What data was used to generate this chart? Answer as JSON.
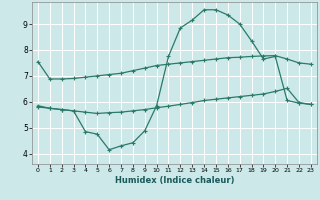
{
  "title": "",
  "xlabel": "Humidex (Indice chaleur)",
  "ylabel": "",
  "bg_color": "#cce8e8",
  "grid_color": "#ffffff",
  "line_color": "#2a7a6a",
  "xlim": [
    -0.5,
    23.5
  ],
  "ylim": [
    3.6,
    9.85
  ],
  "xticks": [
    0,
    1,
    2,
    3,
    4,
    5,
    6,
    7,
    8,
    9,
    10,
    11,
    12,
    13,
    14,
    15,
    16,
    17,
    18,
    19,
    20,
    21,
    22,
    23
  ],
  "yticks": [
    4,
    5,
    6,
    7,
    8,
    9
  ],
  "line1_x": [
    0,
    1,
    2,
    3,
    4,
    5,
    6,
    7,
    8,
    9,
    10,
    11,
    12,
    13,
    14,
    15,
    16,
    17,
    18,
    19,
    20,
    21,
    22,
    23
  ],
  "line1_y": [
    7.55,
    6.88,
    6.88,
    6.9,
    6.95,
    7.0,
    7.05,
    7.1,
    7.2,
    7.3,
    7.4,
    7.45,
    7.5,
    7.55,
    7.6,
    7.65,
    7.7,
    7.72,
    7.75,
    7.77,
    7.78,
    7.65,
    7.5,
    7.45
  ],
  "line2_x": [
    0,
    1,
    2,
    3,
    4,
    5,
    6,
    7,
    8,
    9,
    10,
    11,
    12,
    13,
    14,
    15,
    16,
    17,
    18,
    19,
    20,
    21,
    22,
    23
  ],
  "line2_y": [
    5.8,
    5.75,
    5.7,
    5.65,
    4.85,
    4.75,
    4.15,
    4.3,
    4.42,
    4.88,
    5.85,
    7.75,
    8.85,
    9.15,
    9.55,
    9.55,
    9.35,
    9.0,
    8.35,
    7.65,
    7.75,
    6.05,
    5.95,
    5.9
  ],
  "line3_x": [
    0,
    1,
    2,
    3,
    4,
    5,
    6,
    7,
    8,
    9,
    10,
    11,
    12,
    13,
    14,
    15,
    16,
    17,
    18,
    19,
    20,
    21,
    22,
    23
  ],
  "line3_y": [
    5.85,
    5.75,
    5.7,
    5.65,
    5.6,
    5.55,
    5.58,
    5.6,
    5.65,
    5.7,
    5.77,
    5.83,
    5.9,
    5.97,
    6.05,
    6.1,
    6.15,
    6.2,
    6.25,
    6.3,
    6.4,
    6.52,
    5.97,
    5.9
  ]
}
